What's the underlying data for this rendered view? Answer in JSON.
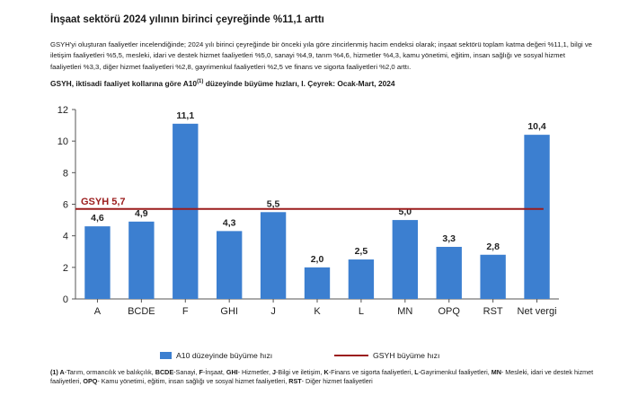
{
  "header": {
    "title": "İnşaat sektörü 2024 yılının birinci çeyreğinde %11,1 arttı",
    "paragraph": "GSYH'yi oluşturan faaliyetler incelendiğinde; 2024 yılı birinci çeyreğinde bir önceki yıla göre zincirlenmiş hacim endeksi olarak; inşaat sektörü toplam katma değeri %11,1, bilgi ve iletişim faaliyetleri %5,5, mesleki, idari ve destek hizmet faaliyetleri %5,0, sanayi %4,9, tarım %4,6, hizmetler %4,3, kamu yönetimi, eğitim, insan sağlığı ve sosyal hizmet faaliyetleri %3,3, diğer hizmet faaliyetleri %2,8, gayrimenkul faaliyetleri %2,5 ve finans ve sigorta faaliyetleri %2,0 arttı.",
    "chart_title_a": "GSYH, iktisadi faaliyet kollarına göre A10",
    "chart_title_sup": "(1)",
    "chart_title_b": " düzeyinde büyüme hızları, I. Çeyrek: Ocak-Mart, 2024"
  },
  "chart_data": {
    "type": "bar",
    "categories": [
      "A",
      "BCDE",
      "F",
      "GHI",
      "J",
      "K",
      "L",
      "MN",
      "OPQ",
      "RST",
      "Net vergi"
    ],
    "series": [
      {
        "name": "A10 düzeyinde büyüme hızı",
        "values": [
          4.6,
          4.9,
          11.1,
          4.3,
          5.5,
          2.0,
          2.5,
          5.0,
          3.3,
          2.8,
          10.4
        ],
        "labels": [
          "4,6",
          "4,9",
          "11,1",
          "4,3",
          "5,5",
          "2,0",
          "2,5",
          "5,0",
          "3,3",
          "2,8",
          "10,4"
        ]
      }
    ],
    "reference_line": {
      "name": "GSYH büyüme hızı",
      "value": 5.7,
      "label": "GSYH 5,7"
    },
    "yticks": [
      "0",
      "2",
      "4",
      "6",
      "8",
      "10",
      "12"
    ],
    "ylim": [
      0,
      12
    ],
    "grid": false,
    "legend": "bottom",
    "colors": {
      "bar": "#3c7fd0",
      "line": "#9b1c1c"
    }
  },
  "footnote": {
    "parts": [
      {
        "b": "(1) A"
      },
      {
        "t": "-Tarım, ormancılık ve balıkçılık, "
      },
      {
        "b": "BCDE"
      },
      {
        "t": "-Sanayi, "
      },
      {
        "b": "F"
      },
      {
        "t": "-İnşaat, "
      },
      {
        "b": "GHI"
      },
      {
        "t": "- Hizmetler, "
      },
      {
        "b": "J"
      },
      {
        "t": "-Bilgi ve iletişim, "
      },
      {
        "b": "K"
      },
      {
        "t": "-Finans ve sigorta faaliyetleri, "
      },
      {
        "b": "L"
      },
      {
        "t": "-Gayrimenkul faaliyetleri, "
      },
      {
        "b": "MN"
      },
      {
        "t": "- Mesleki, idari ve destek hizmet faaliyetleri, "
      },
      {
        "b": "OPQ"
      },
      {
        "t": "- Kamu yönetimi, eğitim, insan sağlığı ve sosyal hizmet faaliyetleri, "
      },
      {
        "b": "RST"
      },
      {
        "t": "- Diğer hizmet faaliyetleri"
      }
    ]
  }
}
